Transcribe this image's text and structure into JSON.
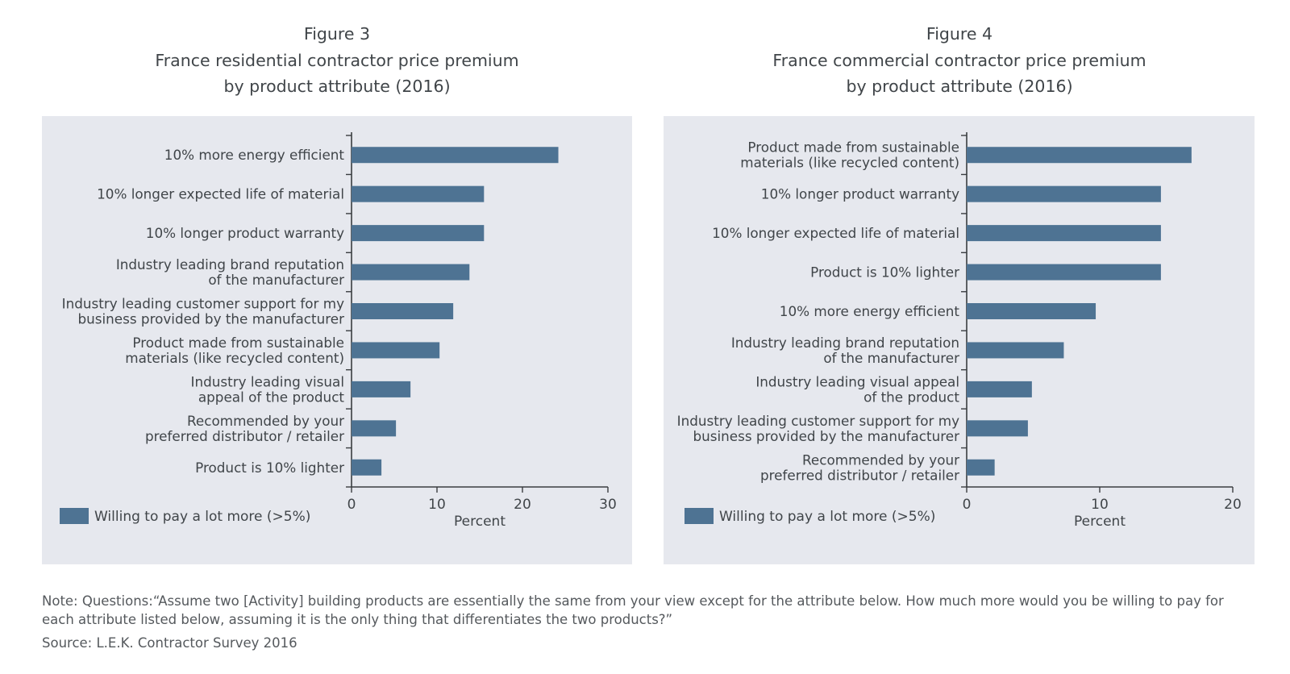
{
  "figures": [
    {
      "figure_label": "Figure 3",
      "title_line1": "France residential contractor price premium",
      "title_line2": "by product attribute (2016)"
    },
    {
      "figure_label": "Figure 4",
      "title_line1": "France commercial contractor price premium",
      "title_line2": "by product attribute (2016)"
    }
  ],
  "chart_data": [
    {
      "type": "bar",
      "orientation": "horizontal",
      "title": "France residential contractor price premium by product attribute (2016)",
      "categories": [
        [
          "10% more energy efficient"
        ],
        [
          "10% longer expected life of material"
        ],
        [
          "10% longer product warranty"
        ],
        [
          "Industry leading brand reputation",
          "of the manufacturer"
        ],
        [
          "Industry leading customer support for my",
          "business provided by the manufacturer"
        ],
        [
          "Product made from sustainable",
          "materials (like recycled content)"
        ],
        [
          "Industry leading visual",
          "appeal of the product"
        ],
        [
          "Recommended by your",
          "preferred distributor / retailer"
        ],
        [
          "Product is 10% lighter"
        ]
      ],
      "series": [
        {
          "name": "Willing to pay a lot more (>5%)",
          "values": [
            24.2,
            15.5,
            15.5,
            13.8,
            11.9,
            10.3,
            6.9,
            5.2,
            3.5
          ]
        }
      ],
      "xlabel": "Percent",
      "xlim": [
        0,
        30
      ],
      "xticks": [
        0,
        10,
        20,
        30
      ],
      "grid": false,
      "legend_position": "bottom-left",
      "bar_color": "#4e7393"
    },
    {
      "type": "bar",
      "orientation": "horizontal",
      "title": "France commercial contractor price premium by product attribute (2016)",
      "categories": [
        [
          "Product made from sustainable",
          "materials (like recycled content)"
        ],
        [
          "10% longer product warranty"
        ],
        [
          "10% longer expected life of material"
        ],
        [
          "Product is 10% lighter"
        ],
        [
          "10% more energy efficient"
        ],
        [
          "Industry leading brand reputation",
          "of the manufacturer"
        ],
        [
          "Industry leading visual appeal",
          "of the product"
        ],
        [
          "Industry leading customer support for my",
          "business provided by the manufacturer"
        ],
        [
          "Recommended by your",
          "preferred distributor / retailer"
        ]
      ],
      "series": [
        {
          "name": "Willing to pay a lot more (>5%)",
          "values": [
            16.9,
            14.6,
            14.6,
            14.6,
            9.7,
            7.3,
            4.9,
            4.6,
            2.1
          ]
        }
      ],
      "xlabel": "Percent",
      "xlim": [
        0,
        20
      ],
      "xticks": [
        0,
        10,
        20
      ],
      "grid": false,
      "legend_position": "bottom-left",
      "bar_color": "#4e7393"
    }
  ],
  "note": "Note: Questions:“Assume two [Activity] building products are essentially the same from your view except for the attribute below. How much more would you be willing to pay for each attribute listed below, assuming it is the only thing that differentiates the two products?”",
  "source": "Source: L.E.K. Contractor Survey 2016"
}
